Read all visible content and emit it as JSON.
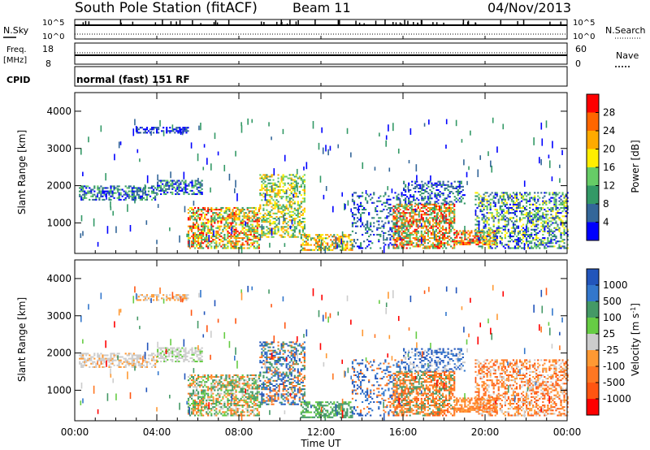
{
  "header": {
    "station": "South Pole Station (fitACF)",
    "beam": "Beam 11",
    "date": "04/Nov/2013"
  },
  "top_panels": {
    "noise_left_label": "N.Sky",
    "noise_right_label": "N.Search",
    "noise_top_tick": "10^5",
    "noise_bottom_tick": "10^0",
    "freq_label": "Freq.",
    "freq_unit": "[MHz]",
    "freq_ticks": [
      "18",
      "8"
    ],
    "nave_label": "Nave",
    "nave_ticks": [
      "60",
      "0"
    ],
    "cpid_label": "CPID",
    "cpid_text": "normal (fast) 151 RF"
  },
  "chart_data": [
    {
      "type": "heatmap",
      "name": "power",
      "ylabel": "Slant Range [km]",
      "yticks": [
        "4000",
        "3000",
        "2000",
        "1000"
      ],
      "ylim": [
        180,
        4500
      ],
      "xlim_hours": [
        0,
        24
      ],
      "colorbar_label": "Power [dB]",
      "colorbar_ticks": [
        "28",
        "24",
        "20",
        "16",
        "12",
        "8",
        "4"
      ],
      "colorbar_colors": [
        "#ff0000",
        "#ff6600",
        "#ffaa00",
        "#ffee00",
        "#66cc66",
        "#339966",
        "#336699",
        "#0000ff"
      ]
    },
    {
      "type": "heatmap",
      "name": "velocity",
      "ylabel": "Slant Range [km]",
      "yticks": [
        "4000",
        "3000",
        "2000",
        "1000"
      ],
      "ylim": [
        180,
        4500
      ],
      "xlim_hours": [
        0,
        24
      ],
      "colorbar_label": "Velocity [m s",
      "colorbar_label_sup": "-1",
      "colorbar_label_end": "]",
      "colorbar_ticks": [
        "1000",
        "500",
        "100",
        "25",
        "-25",
        "-100",
        "-500",
        "-1000"
      ],
      "colorbar_colors": [
        "#2255bb",
        "#3377cc",
        "#449966",
        "#66cc44",
        "#cccccc",
        "#ff9933",
        "#ff7722",
        "#ff5511",
        "#ff0000"
      ]
    }
  ],
  "x_axis": {
    "ticks": [
      "00:00",
      "04:00",
      "08:00",
      "12:00",
      "16:00",
      "20:00",
      "00:00"
    ],
    "label": "Time UT"
  }
}
